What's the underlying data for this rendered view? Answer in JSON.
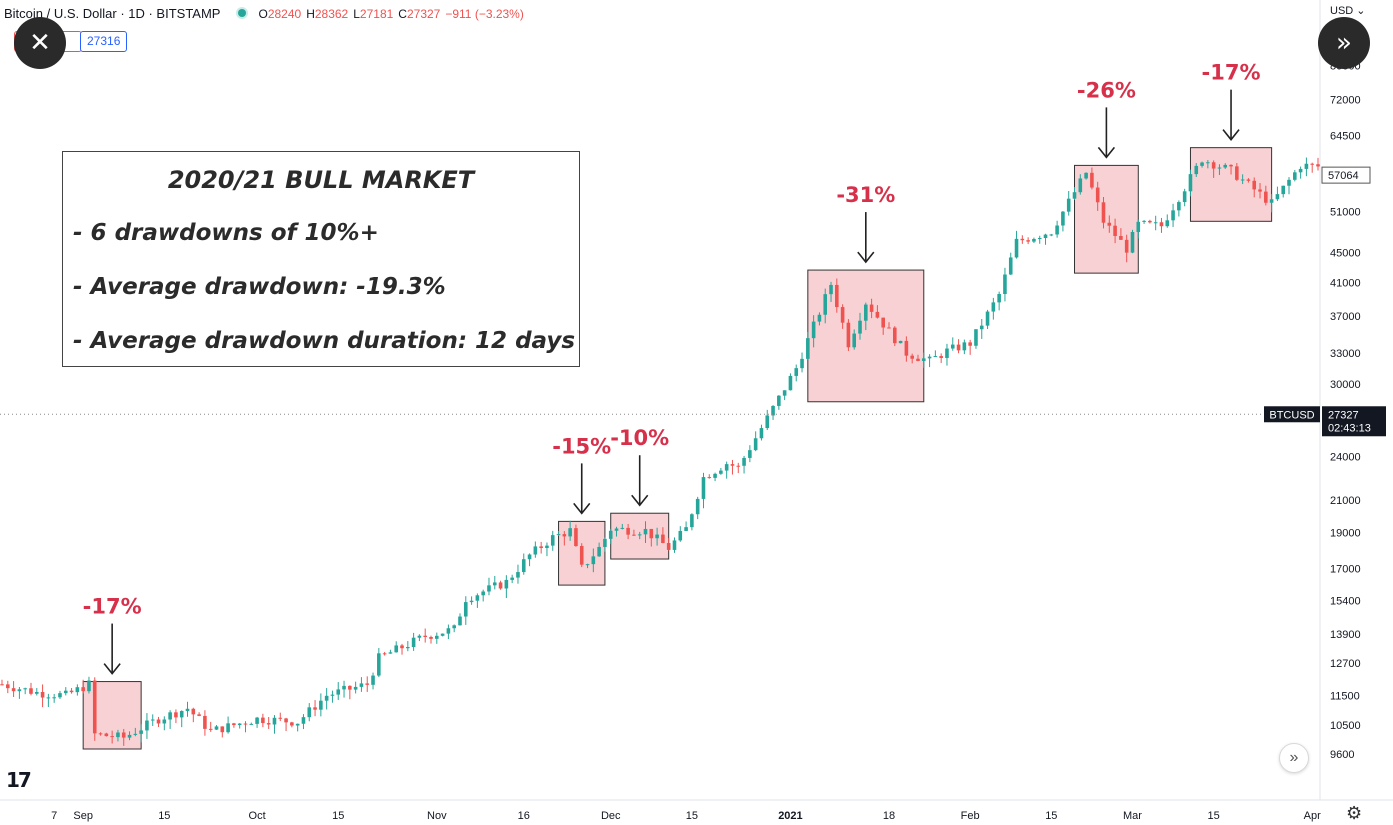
{
  "header": {
    "symbol": "Bitcoin / U.S. Dollar · 1D · BITSTAMP",
    "open_label": "O",
    "open": "28240",
    "high_label": "H",
    "high": "28362",
    "low_label": "L",
    "low": "27181",
    "close_label": "C",
    "close": "27327",
    "change": "−911 (−3.23%)",
    "badge_left": "",
    "badge_right": "27316",
    "currency": "USD"
  },
  "icons": {
    "close": "close-icon",
    "forward": "double-chevron-right-icon",
    "settings": "gear-icon"
  },
  "logo": "17",
  "infobox": {
    "title": "2020/21 BULL MARKET",
    "lines": [
      "- 6 drawdowns of 10%+",
      "- Average drawdown: -19.3%",
      "- Average drawdown duration: 12 days"
    ]
  },
  "colors": {
    "up": "#26a69a",
    "down": "#ef5350",
    "box_fill": "#f7c9cc",
    "annotation": "#d6304a",
    "text": "#131722"
  },
  "chart_data": {
    "type": "candlestick",
    "title": "",
    "yscale": "log",
    "ylim": [
      9000,
      92000
    ],
    "yticks": [
      80000,
      72000,
      64500,
      57064,
      51000,
      45000,
      41000,
      37000,
      33000,
      30000,
      24000,
      21000,
      19000,
      17000,
      15400,
      13900,
      12700,
      11500,
      10500,
      9600
    ],
    "x_start": "2020-08-18",
    "x_end": "2021-04-02",
    "xticks": [
      {
        "label": "7",
        "date": "2020-08-27"
      },
      {
        "label": "Sep",
        "date": "2020-09-01"
      },
      {
        "label": "15",
        "date": "2020-09-15"
      },
      {
        "label": "Oct",
        "date": "2020-10-01"
      },
      {
        "label": "15",
        "date": "2020-10-15"
      },
      {
        "label": "Nov",
        "date": "2020-11-01"
      },
      {
        "label": "16",
        "date": "2020-11-16"
      },
      {
        "label": "Dec",
        "date": "2020-12-01"
      },
      {
        "label": "15",
        "date": "2020-12-15"
      },
      {
        "label": "2021",
        "date": "2021-01-01"
      },
      {
        "label": "18",
        "date": "2021-01-18"
      },
      {
        "label": "Feb",
        "date": "2021-02-01"
      },
      {
        "label": "15",
        "date": "2021-02-15"
      },
      {
        "label": "Mar",
        "date": "2021-03-01"
      },
      {
        "label": "15",
        "date": "2021-03-15"
      },
      {
        "label": "Apr",
        "date": "2021-04-01"
      }
    ],
    "current_price": {
      "label": "BTCUSD",
      "value": "27327",
      "countdown": "02:43:13"
    },
    "last_price_tag": "57064",
    "anchors": [
      {
        "date": "2020-08-18",
        "price": 11900
      },
      {
        "date": "2020-08-24",
        "price": 11600
      },
      {
        "date": "2020-08-29",
        "price": 11500
      },
      {
        "date": "2020-09-02",
        "price": 11900
      },
      {
        "date": "2020-09-03",
        "price": 10200
      },
      {
        "date": "2020-09-08",
        "price": 10100
      },
      {
        "date": "2020-09-14",
        "price": 10700
      },
      {
        "date": "2020-09-19",
        "price": 11050
      },
      {
        "date": "2020-09-23",
        "price": 10300
      },
      {
        "date": "2020-10-01",
        "price": 10700
      },
      {
        "date": "2020-10-08",
        "price": 10600
      },
      {
        "date": "2020-10-13",
        "price": 11500
      },
      {
        "date": "2020-10-20",
        "price": 11900
      },
      {
        "date": "2020-10-22",
        "price": 12900
      },
      {
        "date": "2020-10-30",
        "price": 13800
      },
      {
        "date": "2020-11-04",
        "price": 14100
      },
      {
        "date": "2020-11-06",
        "price": 15500
      },
      {
        "date": "2020-11-13",
        "price": 16300
      },
      {
        "date": "2020-11-17",
        "price": 17700
      },
      {
        "date": "2020-11-21",
        "price": 18700
      },
      {
        "date": "2020-11-24",
        "price": 19100
      },
      {
        "date": "2020-11-26",
        "price": 17000
      },
      {
        "date": "2020-11-29",
        "price": 18100
      },
      {
        "date": "2020-12-01",
        "price": 19200
      },
      {
        "date": "2020-12-07",
        "price": 19100
      },
      {
        "date": "2020-12-11",
        "price": 18100
      },
      {
        "date": "2020-12-14",
        "price": 19200
      },
      {
        "date": "2020-12-17",
        "price": 22500
      },
      {
        "date": "2020-12-21",
        "price": 23500
      },
      {
        "date": "2020-12-23",
        "price": 23200
      },
      {
        "date": "2020-12-28",
        "price": 27000
      },
      {
        "date": "2021-01-02",
        "price": 31500
      },
      {
        "date": "2021-01-08",
        "price": 40800
      },
      {
        "date": "2021-01-11",
        "price": 34000
      },
      {
        "date": "2021-01-14",
        "price": 38600
      },
      {
        "date": "2021-01-21",
        "price": 33000
      },
      {
        "date": "2021-01-25",
        "price": 32200
      },
      {
        "date": "2021-01-28",
        "price": 33200
      },
      {
        "date": "2021-02-01",
        "price": 34000
      },
      {
        "date": "2021-02-06",
        "price": 39500
      },
      {
        "date": "2021-02-09",
        "price": 46500
      },
      {
        "date": "2021-02-15",
        "price": 48000
      },
      {
        "date": "2021-02-21",
        "price": 57500
      },
      {
        "date": "2021-02-24",
        "price": 49500
      },
      {
        "date": "2021-02-28",
        "price": 45500
      },
      {
        "date": "2021-03-02",
        "price": 49000
      },
      {
        "date": "2021-03-06",
        "price": 48800
      },
      {
        "date": "2021-03-13",
        "price": 60000
      },
      {
        "date": "2021-03-18",
        "price": 57800
      },
      {
        "date": "2021-03-25",
        "price": 52300
      },
      {
        "date": "2021-03-30",
        "price": 58800
      },
      {
        "date": "2021-04-02",
        "price": 58600
      }
    ],
    "annotations": [
      {
        "label": "-17%",
        "start": "2020-09-01",
        "end": "2020-09-11",
        "top": 12000,
        "bottom": 9750
      },
      {
        "label": "-15%",
        "start": "2020-11-22",
        "end": "2020-11-30",
        "top": 19650,
        "bottom": 16150
      },
      {
        "label": "-10%",
        "start": "2020-12-01",
        "end": "2020-12-11",
        "top": 20150,
        "bottom": 17500
      },
      {
        "label": "-31%",
        "start": "2021-01-04",
        "end": "2021-01-24",
        "top": 42600,
        "bottom": 28400
      },
      {
        "label": "-26%",
        "start": "2021-02-19",
        "end": "2021-03-02",
        "top": 58800,
        "bottom": 42200
      },
      {
        "label": "-17%",
        "start": "2021-03-11",
        "end": "2021-03-25",
        "top": 62100,
        "bottom": 49500
      }
    ]
  }
}
